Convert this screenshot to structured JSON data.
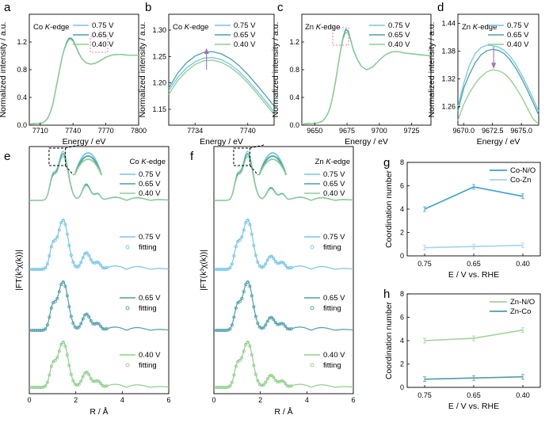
{
  "colors": {
    "v075": "#74c6e6",
    "v065": "#4a9fa8",
    "v040": "#8ccf8a",
    "cn_conno": "#3a9fd8",
    "cn_cozn": "#9fd4ef",
    "cn_znno": "#9fd49a",
    "cn_znco": "#4a9fa8",
    "inset_box": "#e05a8a",
    "arrow": "#a070c0"
  },
  "legend_voltages": [
    "0.75 V",
    "0.65 V",
    "0.40 V"
  ],
  "chart_data": [
    {
      "panel": "a",
      "type": "line",
      "annotation": "Co K-edge",
      "xlabel": "Energy / eV",
      "ylabel": "Normalized intensity / a.u.",
      "xlim": [
        7700,
        7800
      ],
      "ylim": [
        0,
        1.6
      ],
      "xticks": [
        "7710",
        "7740",
        "7770",
        "7800"
      ],
      "yticks": [
        "0.0",
        "0.4",
        "0.8",
        "1.2"
      ],
      "series": [
        {
          "name": "0.75 V",
          "x": [
            7700,
            7712,
            7716,
            7718,
            7720,
            7722,
            7724,
            7726,
            7728,
            7730,
            7732,
            7734,
            7736,
            7738,
            7740,
            7742,
            7745,
            7748,
            7752,
            7756,
            7760,
            7765,
            7770,
            7775,
            7780,
            7785,
            7790,
            7800
          ],
          "y": [
            0.02,
            0.03,
            0.08,
            0.14,
            0.22,
            0.34,
            0.5,
            0.66,
            0.82,
            0.98,
            1.1,
            1.18,
            1.24,
            1.25,
            1.22,
            1.15,
            1.04,
            0.96,
            0.9,
            0.88,
            0.89,
            0.93,
            0.98,
            1.01,
            1.02,
            1.02,
            1.01,
            1.01
          ]
        },
        {
          "name": "0.65 V",
          "x": [
            7700,
            7712,
            7716,
            7718,
            7720,
            7722,
            7724,
            7726,
            7728,
            7730,
            7732,
            7734,
            7736,
            7738,
            7740,
            7742,
            7745,
            7748,
            7752,
            7756,
            7760,
            7765,
            7770,
            7775,
            7780,
            7785,
            7790,
            7800
          ],
          "y": [
            0.02,
            0.03,
            0.08,
            0.14,
            0.22,
            0.34,
            0.5,
            0.66,
            0.82,
            0.98,
            1.1,
            1.19,
            1.25,
            1.26,
            1.23,
            1.16,
            1.05,
            0.96,
            0.9,
            0.88,
            0.89,
            0.93,
            0.98,
            1.01,
            1.02,
            1.02,
            1.01,
            1.01
          ]
        },
        {
          "name": "0.40 V",
          "x": [
            7700,
            7712,
            7716,
            7718,
            7720,
            7722,
            7724,
            7726,
            7728,
            7730,
            7732,
            7734,
            7736,
            7738,
            7740,
            7742,
            7745,
            7748,
            7752,
            7756,
            7760,
            7765,
            7770,
            7775,
            7780,
            7785,
            7790,
            7800
          ],
          "y": [
            0.02,
            0.03,
            0.08,
            0.14,
            0.22,
            0.34,
            0.5,
            0.66,
            0.82,
            0.98,
            1.09,
            1.17,
            1.23,
            1.24,
            1.21,
            1.15,
            1.04,
            0.96,
            0.9,
            0.88,
            0.89,
            0.93,
            0.98,
            1.01,
            1.02,
            1.02,
            1.01,
            1.01
          ]
        }
      ]
    },
    {
      "panel": "b",
      "type": "line",
      "annotation": "Co K-edge",
      "xlabel": "Energy / eV",
      "ylabel": "Normalized intensity / a.u.",
      "xlim": [
        7731,
        7743
      ],
      "ylim": [
        1.12,
        1.33
      ],
      "xticks": [
        "7734",
        "7740"
      ],
      "yticks": [
        "1.15",
        "1.20",
        "1.25",
        "1.30"
      ],
      "series": [
        {
          "name": "0.75 V",
          "x": [
            7731,
            7732,
            7733,
            7734,
            7735,
            7736,
            7737,
            7738,
            7739,
            7740,
            7741,
            7742,
            7743
          ],
          "y": [
            1.185,
            1.21,
            1.228,
            1.24,
            1.247,
            1.248,
            1.244,
            1.235,
            1.222,
            1.205,
            1.186,
            1.166,
            1.145
          ]
        },
        {
          "name": "0.65 V",
          "x": [
            7731,
            7732,
            7733,
            7734,
            7735,
            7736,
            7737,
            7738,
            7739,
            7740,
            7741,
            7742,
            7743
          ],
          "y": [
            1.19,
            1.218,
            1.238,
            1.251,
            1.258,
            1.259,
            1.255,
            1.246,
            1.233,
            1.216,
            1.197,
            1.177,
            1.156
          ]
        },
        {
          "name": "0.40 V",
          "x": [
            7731,
            7732,
            7733,
            7734,
            7735,
            7736,
            7737,
            7738,
            7739,
            7740,
            7741,
            7742,
            7743
          ],
          "y": [
            1.178,
            1.204,
            1.222,
            1.235,
            1.242,
            1.243,
            1.239,
            1.23,
            1.217,
            1.2,
            1.181,
            1.161,
            1.14
          ]
        }
      ]
    },
    {
      "panel": "c",
      "type": "line",
      "annotation": "Zn K-edge",
      "xlabel": "Energy / eV",
      "ylabel": "Normalized intensity / a.u.",
      "xlim": [
        9640,
        9740
      ],
      "ylim": [
        0,
        1.6
      ],
      "xticks": [
        "9650",
        "9675",
        "9700",
        "9725"
      ],
      "yticks": [
        "0.0",
        "0.4",
        "0.8",
        "1.2"
      ],
      "series": [
        {
          "name": "0.75 V",
          "x": [
            9640,
            9652,
            9656,
            9658,
            9660,
            9662,
            9664,
            9666,
            9668,
            9670,
            9672,
            9674,
            9676,
            9678,
            9680,
            9683,
            9686,
            9690,
            9695,
            9700,
            9705,
            9710,
            9715,
            9720,
            9730,
            9740
          ],
          "y": [
            0.02,
            0.03,
            0.06,
            0.1,
            0.16,
            0.26,
            0.42,
            0.62,
            0.85,
            1.08,
            1.28,
            1.39,
            1.36,
            1.22,
            1.08,
            0.95,
            0.85,
            0.8,
            0.84,
            0.94,
            1.02,
            1.06,
            1.06,
            1.04,
            1.02,
            1.0
          ]
        },
        {
          "name": "0.65 V",
          "x": [
            9640,
            9652,
            9656,
            9658,
            9660,
            9662,
            9664,
            9666,
            9668,
            9670,
            9672,
            9674,
            9676,
            9678,
            9680,
            9683,
            9686,
            9690,
            9695,
            9700,
            9705,
            9710,
            9715,
            9720,
            9730,
            9740
          ],
          "y": [
            0.02,
            0.03,
            0.06,
            0.1,
            0.16,
            0.26,
            0.42,
            0.62,
            0.85,
            1.08,
            1.27,
            1.38,
            1.35,
            1.22,
            1.08,
            0.95,
            0.85,
            0.8,
            0.84,
            0.94,
            1.02,
            1.06,
            1.06,
            1.04,
            1.02,
            1.0
          ]
        },
        {
          "name": "0.40 V",
          "x": [
            9640,
            9652,
            9656,
            9658,
            9660,
            9662,
            9664,
            9666,
            9668,
            9670,
            9672,
            9674,
            9676,
            9678,
            9680,
            9683,
            9686,
            9690,
            9695,
            9700,
            9705,
            9710,
            9715,
            9720,
            9730,
            9740
          ],
          "y": [
            0.02,
            0.03,
            0.06,
            0.1,
            0.16,
            0.26,
            0.42,
            0.62,
            0.85,
            1.07,
            1.25,
            1.34,
            1.32,
            1.21,
            1.07,
            0.95,
            0.85,
            0.8,
            0.84,
            0.94,
            1.02,
            1.06,
            1.06,
            1.04,
            1.02,
            1.0
          ]
        }
      ]
    },
    {
      "panel": "d",
      "type": "line",
      "annotation": "Zn K-edge",
      "xlabel": "Energy / eV",
      "ylabel": "Normalized intensity / a.u.",
      "xlim": [
        9669.5,
        9676.5
      ],
      "ylim": [
        1.22,
        1.46
      ],
      "xticks": [
        "9670.0",
        "9672.5",
        "9675.0"
      ],
      "yticks": [
        "1.26",
        "1.32",
        "1.38",
        "1.44"
      ],
      "series": [
        {
          "name": "0.75 V",
          "x": [
            9669.5,
            9670.0,
            9670.5,
            9671.0,
            9671.5,
            9672.0,
            9672.5,
            9673.0,
            9673.5,
            9674.0,
            9674.5,
            9675.0,
            9675.5,
            9676.0,
            9676.5
          ],
          "y": [
            1.26,
            1.31,
            1.35,
            1.375,
            1.388,
            1.393,
            1.392,
            1.389,
            1.382,
            1.37,
            1.352,
            1.33,
            1.305,
            1.278,
            1.25
          ]
        },
        {
          "name": "0.65 V",
          "x": [
            9669.5,
            9670.0,
            9670.5,
            9671.0,
            9671.5,
            9672.0,
            9672.5,
            9673.0,
            9673.5,
            9674.0,
            9674.5,
            9675.0,
            9675.5,
            9676.0,
            9676.5
          ],
          "y": [
            1.25,
            1.3,
            1.33,
            1.355,
            1.372,
            1.381,
            1.384,
            1.382,
            1.375,
            1.362,
            1.344,
            1.322,
            1.297,
            1.27,
            1.242
          ]
        },
        {
          "name": "0.40 V",
          "x": [
            9669.5,
            9670.0,
            9670.5,
            9671.0,
            9671.5,
            9672.0,
            9672.5,
            9673.0,
            9673.5,
            9674.0,
            9674.5,
            9675.0,
            9675.5,
            9676.0,
            9676.5
          ],
          "y": [
            1.23,
            1.265,
            1.29,
            1.31,
            1.325,
            1.335,
            1.34,
            1.338,
            1.332,
            1.32,
            1.302,
            1.282,
            1.258,
            1.234,
            1.222
          ]
        }
      ]
    },
    {
      "panel": "e",
      "type": "line",
      "annotation": "Co K-edge",
      "xlabel": "R / Å",
      "ylabel": "|FT(k³χ(k))|",
      "xlim": [
        0,
        6
      ],
      "xticks": [
        "0",
        "2",
        "4",
        "6"
      ],
      "fit_legend": [
        "0.75 V",
        "fitting",
        "0.65 V",
        "fitting",
        "0.40 V",
        "fitting"
      ]
    },
    {
      "panel": "f",
      "type": "line",
      "annotation": "Zn K-edge",
      "xlabel": "R / Å",
      "ylabel": "|FT(k³χ(k))|",
      "xlim": [
        0,
        6
      ],
      "xticks": [
        "0",
        "2",
        "4",
        "6"
      ],
      "fit_legend": [
        "0.75 V",
        "fitting",
        "0.65 V",
        "fitting",
        "0.40 V",
        "fitting"
      ]
    },
    {
      "panel": "g",
      "type": "line",
      "xlabel": "E / V vs. RHE",
      "ylabel": "Coordination number",
      "categories": [
        "0.75",
        "0.65",
        "0.40"
      ],
      "ylim": [
        0,
        8
      ],
      "yticks": [
        "0",
        "2",
        "4",
        "6",
        "8"
      ],
      "series": [
        {
          "name": "Co-N/O",
          "values": [
            4.0,
            5.9,
            5.1
          ],
          "err": [
            0.2,
            0.2,
            0.2
          ]
        },
        {
          "name": "Co-Zn",
          "values": [
            0.7,
            0.8,
            0.9
          ],
          "err": [
            0.2,
            0.2,
            0.2
          ]
        }
      ]
    },
    {
      "panel": "h",
      "type": "line",
      "xlabel": "E / V vs. RHE",
      "ylabel": "Coordination number",
      "categories": [
        "0.75",
        "0.65",
        "0.40"
      ],
      "ylim": [
        0,
        8
      ],
      "yticks": [
        "0",
        "2",
        "4",
        "6",
        "8"
      ],
      "series": [
        {
          "name": "Zn-N/O",
          "values": [
            4.0,
            4.2,
            4.9
          ],
          "err": [
            0.2,
            0.2,
            0.2
          ]
        },
        {
          "name": "Zn-Co",
          "values": [
            0.7,
            0.8,
            0.9
          ],
          "err": [
            0.2,
            0.2,
            0.2
          ]
        }
      ]
    }
  ],
  "panel_letters": [
    "a",
    "b",
    "c",
    "d",
    "e",
    "f",
    "g",
    "h"
  ]
}
